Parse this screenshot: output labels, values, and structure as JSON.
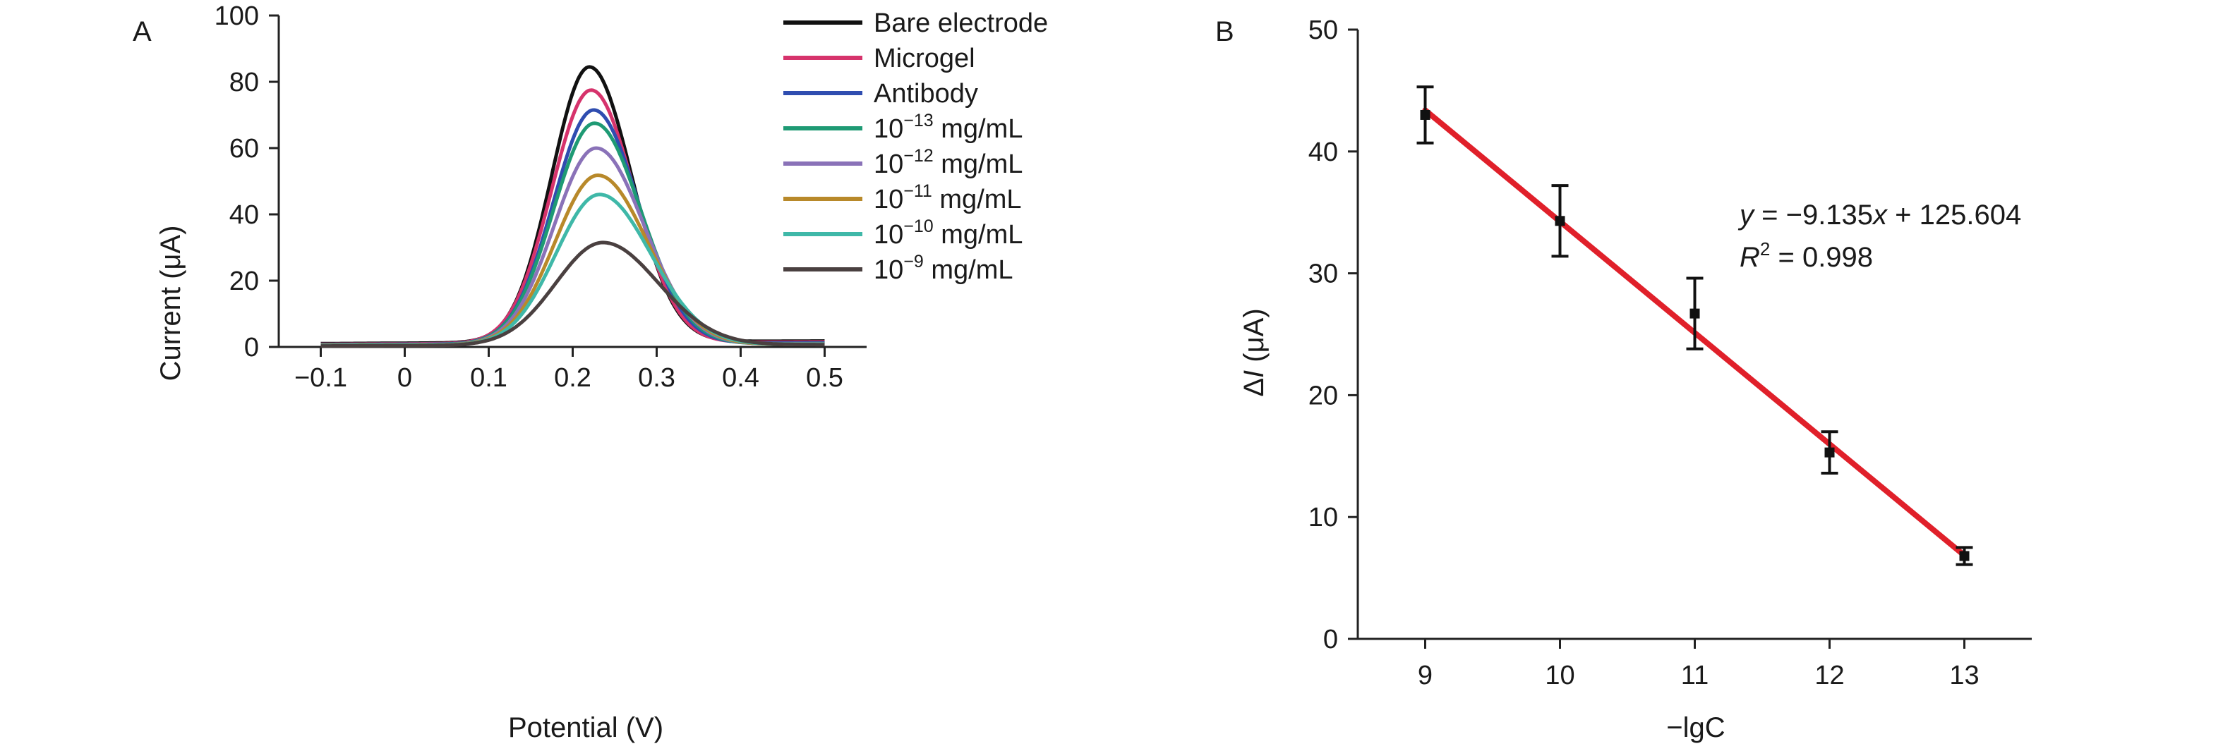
{
  "chart_data": [
    {
      "type": "line",
      "panel_label": "A",
      "xlabel": "Potential (V)",
      "ylabel": "Current (μA)",
      "xlim": [
        -0.15,
        0.55
      ],
      "ylim": [
        0,
        100
      ],
      "x_ticks": [
        -0.1,
        0,
        0.1,
        0.2,
        0.3,
        0.4,
        0.5
      ],
      "x_tick_labels": [
        "−0.1",
        "0",
        "0.1",
        "0.2",
        "0.3",
        "0.4",
        "0.5"
      ],
      "y_ticks": [
        0,
        20,
        40,
        60,
        80,
        100
      ],
      "y_tick_labels": [
        "0",
        "20",
        "40",
        "60",
        "80",
        "100"
      ],
      "grid": false,
      "legend_position": "top-right",
      "series": [
        {
          "name": "Bare electrode",
          "label": {
            "base": "Bare electrode",
            "sup": "",
            "unit": ""
          },
          "color": "#111111",
          "peak_x": 0.22,
          "peak_y": 84.5,
          "baseline_start": 1.0,
          "baseline_end": 1.8,
          "sigma_left": 0.045,
          "sigma_right": 0.05
        },
        {
          "name": "Microgel",
          "label": {
            "base": "Microgel",
            "sup": "",
            "unit": ""
          },
          "color": "#d6336c",
          "peak_x": 0.222,
          "peak_y": 77.5,
          "baseline_start": 0.8,
          "baseline_end": 1.5,
          "sigma_left": 0.047,
          "sigma_right": 0.051
        },
        {
          "name": "Antibody",
          "label": {
            "base": "Antibody",
            "sup": "",
            "unit": ""
          },
          "color": "#2f4db0",
          "peak_x": 0.225,
          "peak_y": 71.5,
          "baseline_start": 0.7,
          "baseline_end": 1.2,
          "sigma_left": 0.048,
          "sigma_right": 0.053
        },
        {
          "name": "10−13 mg/mL",
          "label": {
            "base": "10",
            "sup": "−13",
            "unit": " mg/mL"
          },
          "color": "#1e9a74",
          "peak_x": 0.226,
          "peak_y": 67.5,
          "baseline_start": 0.6,
          "baseline_end": 1.0,
          "sigma_left": 0.049,
          "sigma_right": 0.055
        },
        {
          "name": "10−12 mg/mL",
          "label": {
            "base": "10",
            "sup": "−12",
            "unit": " mg/mL"
          },
          "color": "#8a72b8",
          "peak_x": 0.228,
          "peak_y": 60.0,
          "baseline_start": 0.5,
          "baseline_end": 0.9,
          "sigma_left": 0.05,
          "sigma_right": 0.057
        },
        {
          "name": "10−11 mg/mL",
          "label": {
            "base": "10",
            "sup": "−11",
            "unit": " mg/mL"
          },
          "color": "#b8892a",
          "peak_x": 0.23,
          "peak_y": 51.8,
          "baseline_start": 0.5,
          "baseline_end": 0.8,
          "sigma_left": 0.051,
          "sigma_right": 0.059
        },
        {
          "name": "10−10 mg/mL",
          "label": {
            "base": "10",
            "sup": "−10",
            "unit": " mg/mL"
          },
          "color": "#3fb8a8",
          "peak_x": 0.232,
          "peak_y": 46.0,
          "baseline_start": 0.4,
          "baseline_end": 0.8,
          "sigma_left": 0.052,
          "sigma_right": 0.061
        },
        {
          "name": "10−9 mg/mL",
          "label": {
            "base": "10",
            "sup": "−9",
            "unit": " mg/mL"
          },
          "color": "#4a4040",
          "peak_x": 0.236,
          "peak_y": 31.5,
          "baseline_start": 0.3,
          "baseline_end": 0.7,
          "sigma_left": 0.056,
          "sigma_right": 0.066
        }
      ]
    },
    {
      "type": "scatter",
      "panel_label": "B",
      "xlabel": "−lgC",
      "ylabel": {
        "pre": "Δ",
        "italic": "I",
        "post": " (μA)"
      },
      "xlim": [
        8.5,
        13.5
      ],
      "ylim": [
        0,
        50
      ],
      "x_ticks": [
        9,
        10,
        11,
        12,
        13
      ],
      "x_tick_labels": [
        "9",
        "10",
        "11",
        "12",
        "13"
      ],
      "y_ticks": [
        0,
        10,
        20,
        30,
        40,
        50
      ],
      "y_tick_labels": [
        "0",
        "10",
        "20",
        "30",
        "40",
        "50"
      ],
      "grid": false,
      "points": [
        {
          "x": 9,
          "y": 43.0,
          "err": 2.3
        },
        {
          "x": 10,
          "y": 34.3,
          "err": 2.9
        },
        {
          "x": 11,
          "y": 26.7,
          "err": 2.9
        },
        {
          "x": 12,
          "y": 15.3,
          "err": 1.7
        },
        {
          "x": 13,
          "y": 6.8,
          "err": 0.7
        }
      ],
      "fit": {
        "slope": -9.135,
        "intercept": 125.604,
        "color": "#e0202a",
        "x_range": [
          9,
          13
        ]
      },
      "equation": {
        "line1": {
          "y": "y",
          "mid": " = −9.135",
          "x": "x",
          "end": " + 125.604"
        },
        "line2": {
          "r": "R",
          "sup": "2",
          "end": " = 0.998"
        }
      },
      "point_color": "#111111"
    }
  ]
}
